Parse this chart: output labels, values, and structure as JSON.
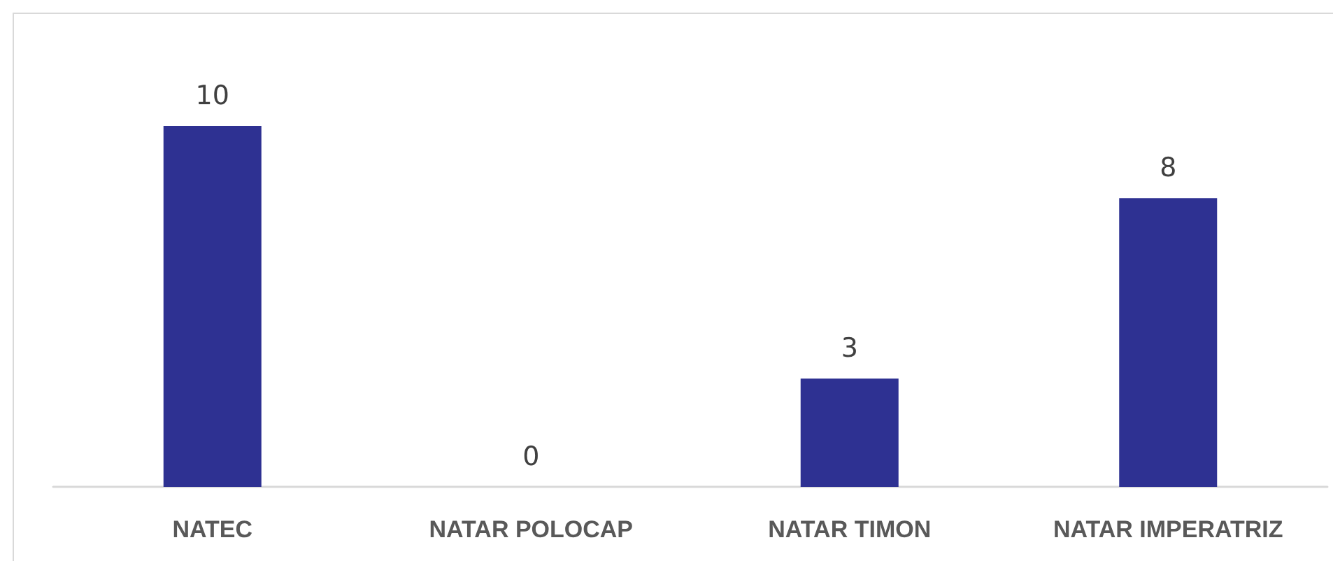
{
  "chart_data": {
    "type": "bar",
    "categories": [
      "NATEC",
      "NATAR POLOCAP",
      "NATAR TIMON",
      "NATAR IMPERATRIZ"
    ],
    "values": [
      10,
      0,
      3,
      8
    ],
    "color": "#2e3192",
    "data_labels": true
  }
}
